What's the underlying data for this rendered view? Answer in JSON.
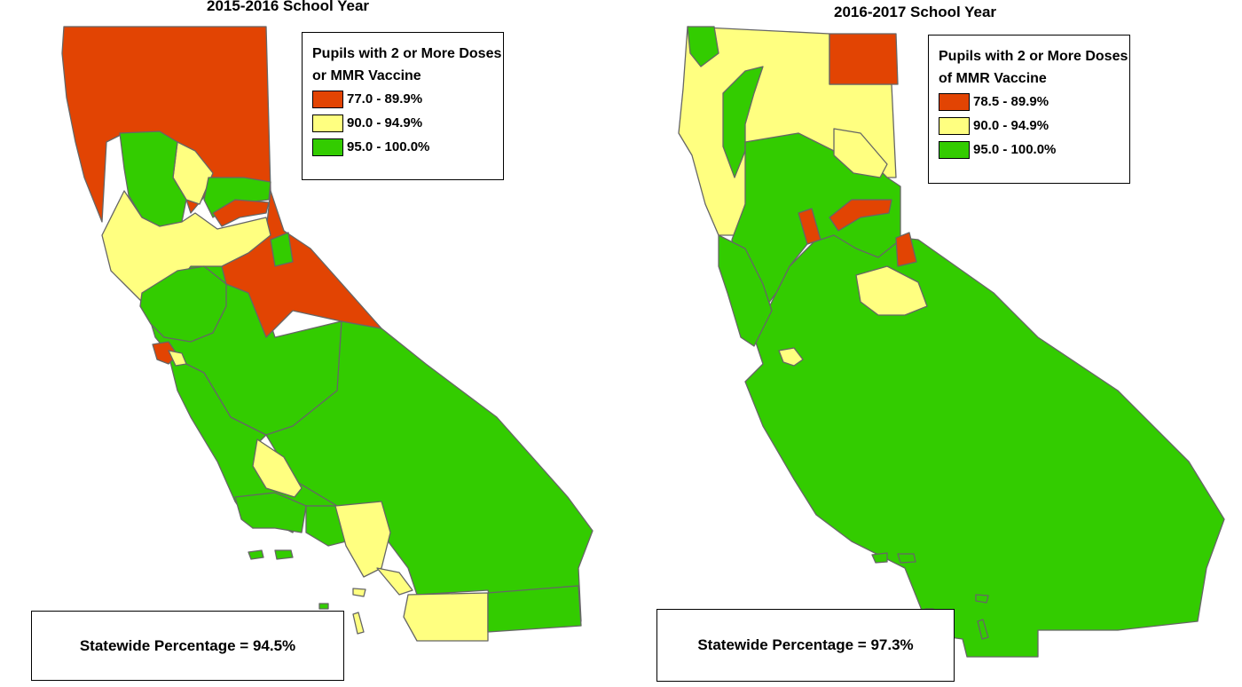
{
  "colors": {
    "red": "#e24403",
    "yellow": "#ffff80",
    "green": "#33cc00",
    "border": "#666666"
  },
  "maps": [
    {
      "title": "2015-2016 School Year",
      "legend": {
        "title": "Pupils with 2 or More Doses or MMR Vaccine",
        "items": [
          {
            "label": "77.0 - 89.9%",
            "color": "#e24403"
          },
          {
            "label": "90.0 - 94.9%",
            "color": "#ffff80"
          },
          {
            "label": "95.0 - 100.0%",
            "color": "#33cc00"
          }
        ]
      },
      "statewide": "Statewide Percentage = 94.5%"
    },
    {
      "title": "2016-2017 School Year",
      "legend": {
        "title": "Pupils with 2 or More Doses of MMR Vaccine",
        "items": [
          {
            "label": "78.5 - 89.9%",
            "color": "#e24403"
          },
          {
            "label": "90.0 - 94.9%",
            "color": "#ffff80"
          },
          {
            "label": "95.0 - 100.0%",
            "color": "#33cc00"
          }
        ]
      },
      "statewide": "Statewide Percentage = 97.3%"
    }
  ]
}
